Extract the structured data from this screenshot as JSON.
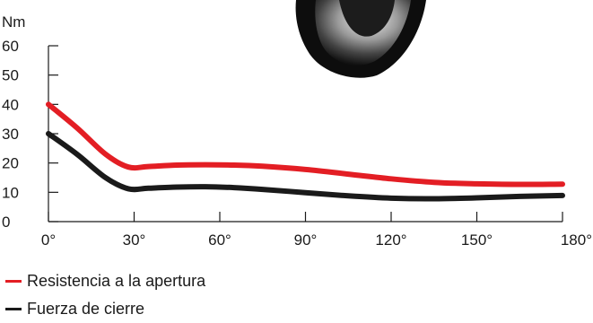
{
  "chart_data": {
    "type": "line",
    "ylabel": "Nm",
    "xlabel": "",
    "xlim": [
      0,
      180
    ],
    "ylim": [
      0,
      60
    ],
    "x_ticks": [
      0,
      30,
      60,
      90,
      120,
      150,
      180
    ],
    "x_tick_labels": [
      "0°",
      "30°",
      "60°",
      "90°",
      "120°",
      "150°",
      "180°"
    ],
    "y_ticks": [
      0,
      10,
      20,
      30,
      40,
      50,
      60
    ],
    "y_tick_labels": [
      "0",
      "10",
      "20",
      "30",
      "40",
      "50",
      "60"
    ],
    "grid": false,
    "legend_position": "bottom-left",
    "series": [
      {
        "name": "Resistencia a la apertura",
        "color": "#e31e24",
        "x": [
          0,
          10,
          20,
          28,
          35,
          45,
          55,
          65,
          75,
          90,
          105,
          120,
          135,
          150,
          165,
          180
        ],
        "y": [
          40,
          32,
          23,
          18.6,
          18.8,
          19.3,
          19.4,
          19.3,
          18.9,
          17.8,
          16.2,
          14.6,
          13.4,
          12.9,
          12.7,
          12.8
        ]
      },
      {
        "name": "Fuerza de cierre",
        "color": "#1a1a1a",
        "x": [
          0,
          10,
          20,
          28,
          35,
          45,
          55,
          65,
          75,
          90,
          105,
          120,
          135,
          150,
          165,
          180
        ],
        "y": [
          30,
          23,
          15,
          11.2,
          11.4,
          11.8,
          11.9,
          11.6,
          11.0,
          9.9,
          8.8,
          8.0,
          7.8,
          8.1,
          8.6,
          8.9
        ]
      }
    ]
  },
  "product_image": {
    "name": "hinge-product-photo"
  }
}
